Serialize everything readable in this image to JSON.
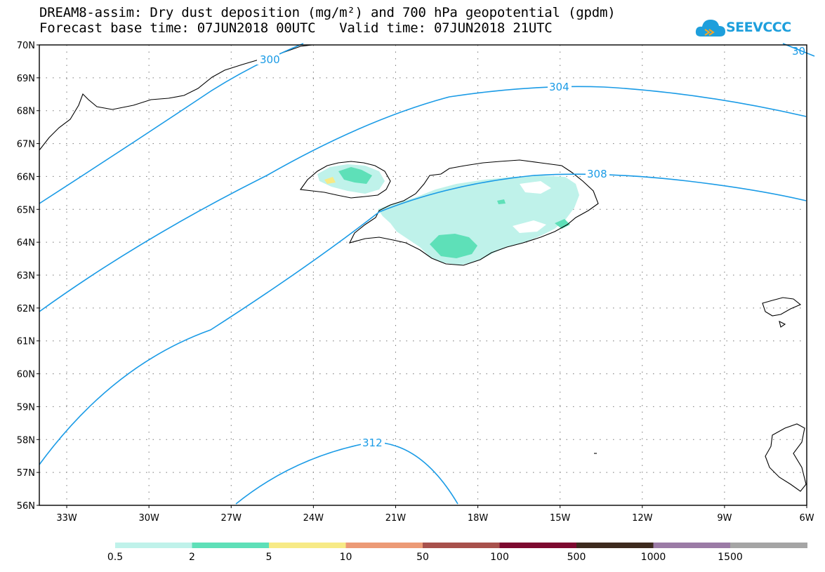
{
  "title": {
    "line1": "DREAM8-assim: Dry dust deposition (mg/m²) and 700 hPa geopotential (gpdm)",
    "line2": "Forecast base time: 07JUN2018 00UTC   Valid time: 07JUN2018 21UTC"
  },
  "logo": {
    "text": "SEEVCCC",
    "icon": "cloud-icon",
    "color": "#1e9fdc"
  },
  "map": {
    "lat_range": [
      56,
      70
    ],
    "lon_range": [
      -34,
      -6
    ],
    "lat_ticks": [
      "70N",
      "69N",
      "68N",
      "67N",
      "66N",
      "65N",
      "64N",
      "63N",
      "62N",
      "61N",
      "60N",
      "59N",
      "58N",
      "57N",
      "56N"
    ],
    "lon_ticks": [
      "33W",
      "30W",
      "27W",
      "24W",
      "21W",
      "18W",
      "15W",
      "12W",
      "9W",
      "6W"
    ],
    "contour_color": "#1a9be6",
    "contour_labels": [
      "300",
      "304",
      "308",
      "312",
      "30"
    ]
  },
  "colorbar": {
    "colors": [
      "#bff2ea",
      "#5ee0b8",
      "#f7ea86",
      "#ec9a76",
      "#a8514c",
      "#7d0930",
      "#3d2a1e",
      "#9b7ba6",
      "#a5a5a5"
    ],
    "labels": [
      "0.5",
      "2",
      "5",
      "10",
      "50",
      "100",
      "500",
      "1000",
      "1500"
    ]
  }
}
